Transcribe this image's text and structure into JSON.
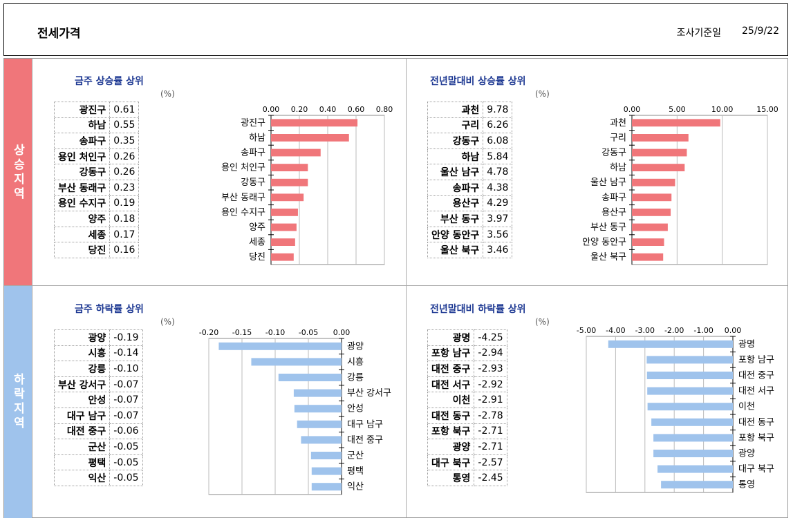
{
  "header": {
    "title": "전세가격",
    "date_label": "조사기준일",
    "date_value": "25/9/22"
  },
  "sections": {
    "up": "상승지역",
    "down": "하락지역"
  },
  "unit": "(%)",
  "colors": {
    "rise": "#f0767a",
    "fall": "#9fc3ec",
    "title": "#1f3a93"
  },
  "chart_data": [
    {
      "id": "weekly_rise",
      "type": "bar",
      "orientation": "horizontal",
      "title": "금주 상승률 상위",
      "categories": [
        "광진구",
        "하남",
        "송파구",
        "용인 처인구",
        "강동구",
        "부산 동래구",
        "용인 수지구",
        "양주",
        "세종",
        "당진"
      ],
      "labels": [
        "0.61",
        "0.55",
        "0.35",
        "0.26",
        "0.26",
        "0.23",
        "0.19",
        "0.18",
        "0.17",
        "0.16"
      ],
      "values": [
        0.61,
        0.55,
        0.35,
        0.26,
        0.26,
        0.23,
        0.19,
        0.18,
        0.17,
        0.16
      ],
      "xlim": [
        0,
        0.8
      ],
      "ticks": [
        "0.00",
        "0.20",
        "0.40",
        "0.60",
        "0.80"
      ],
      "axis_position": "top",
      "grid": true
    },
    {
      "id": "ytd_rise",
      "type": "bar",
      "orientation": "horizontal",
      "title": "전년말대비 상승률 상위",
      "categories": [
        "과천",
        "구리",
        "강동구",
        "하남",
        "울산 남구",
        "송파구",
        "용산구",
        "부산 동구",
        "안양 동안구",
        "울산 북구"
      ],
      "labels": [
        "9.78",
        "6.26",
        "6.08",
        "5.84",
        "4.78",
        "4.38",
        "4.29",
        "3.97",
        "3.56",
        "3.46"
      ],
      "values": [
        9.78,
        6.26,
        6.08,
        5.84,
        4.78,
        4.38,
        4.29,
        3.97,
        3.56,
        3.46
      ],
      "xlim": [
        0,
        15
      ],
      "ticks": [
        "0.00",
        "5.00",
        "10.00",
        "15.00"
      ],
      "axis_position": "top",
      "grid": true
    },
    {
      "id": "weekly_fall",
      "type": "bar",
      "orientation": "horizontal",
      "title": "금주 하락률 상위",
      "categories": [
        "광양",
        "시흥",
        "강릉",
        "부산 강서구",
        "안성",
        "대구 남구",
        "대전 중구",
        "군산",
        "평택",
        "익산"
      ],
      "labels": [
        "-0.19",
        "-0.14",
        "-0.10",
        "-0.07",
        "-0.07",
        "-0.07",
        "-0.06",
        "-0.05",
        "-0.05",
        "-0.05"
      ],
      "values": [
        -0.185,
        -0.136,
        -0.095,
        -0.072,
        -0.071,
        -0.067,
        -0.061,
        -0.046,
        -0.045,
        -0.045
      ],
      "xlim": [
        -0.2,
        0
      ],
      "ticks": [
        "-0.20",
        "-0.15",
        "-0.10",
        "-0.05",
        "0.00"
      ],
      "axis_position": "top",
      "grid": true
    },
    {
      "id": "ytd_fall",
      "type": "bar",
      "orientation": "horizontal",
      "title": "전년말대비 하락률 상위",
      "categories": [
        "광명",
        "포항 남구",
        "대전 중구",
        "대전 서구",
        "이천",
        "대전 동구",
        "포항 북구",
        "광양",
        "대구 북구",
        "통영"
      ],
      "labels": [
        "-4.25",
        "-2.94",
        "-2.93",
        "-2.92",
        "-2.91",
        "-2.78",
        "-2.71",
        "-2.71",
        "-2.57",
        "-2.45"
      ],
      "values": [
        -4.25,
        -2.94,
        -2.93,
        -2.92,
        -2.91,
        -2.78,
        -2.71,
        -2.71,
        -2.57,
        -2.45
      ],
      "xlim": [
        -5,
        0
      ],
      "ticks": [
        "-5.00",
        "-4.00",
        "-3.00",
        "-2.00",
        "-1.00",
        "0.00"
      ],
      "axis_position": "top",
      "grid": true
    }
  ]
}
